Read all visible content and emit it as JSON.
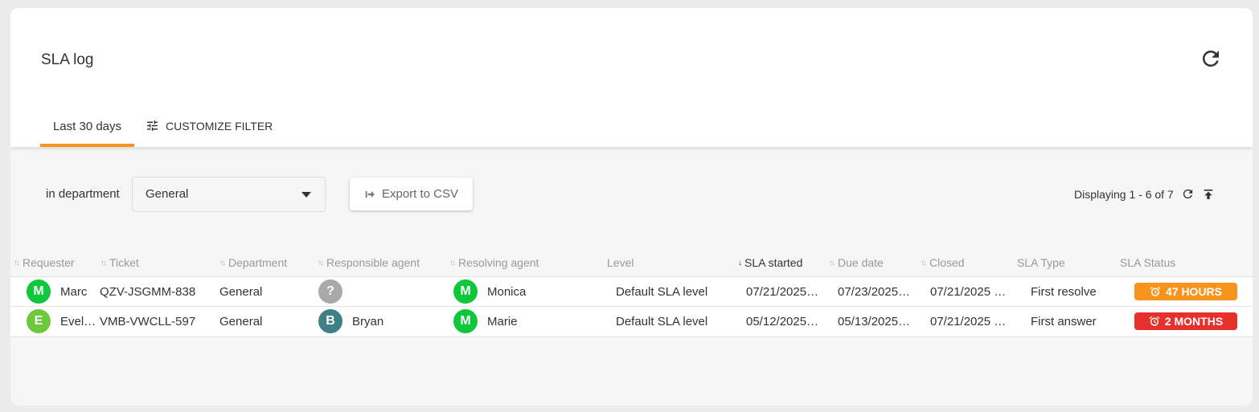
{
  "header": {
    "title": "SLA log",
    "tab_active": "Last 30 days",
    "customize_filter": "CUSTOMIZE FILTER"
  },
  "toolbar": {
    "department_label": "in department",
    "department_value": "General",
    "export_label": "Export to CSV",
    "displaying": "Displaying 1 - 6 of 7"
  },
  "columns": [
    "Requester",
    "Ticket",
    "Department",
    "Responsible agent",
    "Resolving agent",
    "Level",
    "SLA started",
    "Due date",
    "Closed",
    "SLA Type",
    "SLA Status"
  ],
  "sorted_column": "SLA started",
  "colors": {
    "accent": "#f7941d",
    "green": "#0ec73a",
    "light_green": "#6cc83c",
    "teal": "#3f7f87",
    "grey": "#a9a9a9",
    "orange": "#f7941d",
    "red": "#e5302b"
  },
  "rows": [
    {
      "requester": "Marc",
      "requester_initial": "M",
      "requester_color": "#0ec73a",
      "ticket": "QZV-JSGMM-838",
      "department": "General",
      "responsible": "",
      "responsible_initial": "?",
      "responsible_color": "#a9a9a9",
      "resolving": "Monica",
      "resolving_initial": "M",
      "resolving_color": "#0ec73a",
      "level": "Default SLA level",
      "started": "07/21/2025…",
      "due": "07/23/2025…",
      "closed": "07/21/2025 …",
      "type": "First resolve",
      "status": "47 HOURS",
      "status_color": "#f7941d"
    },
    {
      "requester": "Evel…",
      "requester_initial": "E",
      "requester_color": "#6cc83c",
      "ticket": "VMB-VWCLL-597",
      "department": "General",
      "responsible": "Bryan",
      "responsible_initial": "B",
      "responsible_color": "#3f7f87",
      "resolving": "Marie",
      "resolving_initial": "M",
      "resolving_color": "#0ec73a",
      "level": "Default SLA level",
      "started": "05/12/2025…",
      "due": "05/13/2025…",
      "closed": "07/21/2025 …",
      "type": "First answer",
      "status": "2 MONTHS",
      "status_color": "#e5302b"
    }
  ]
}
